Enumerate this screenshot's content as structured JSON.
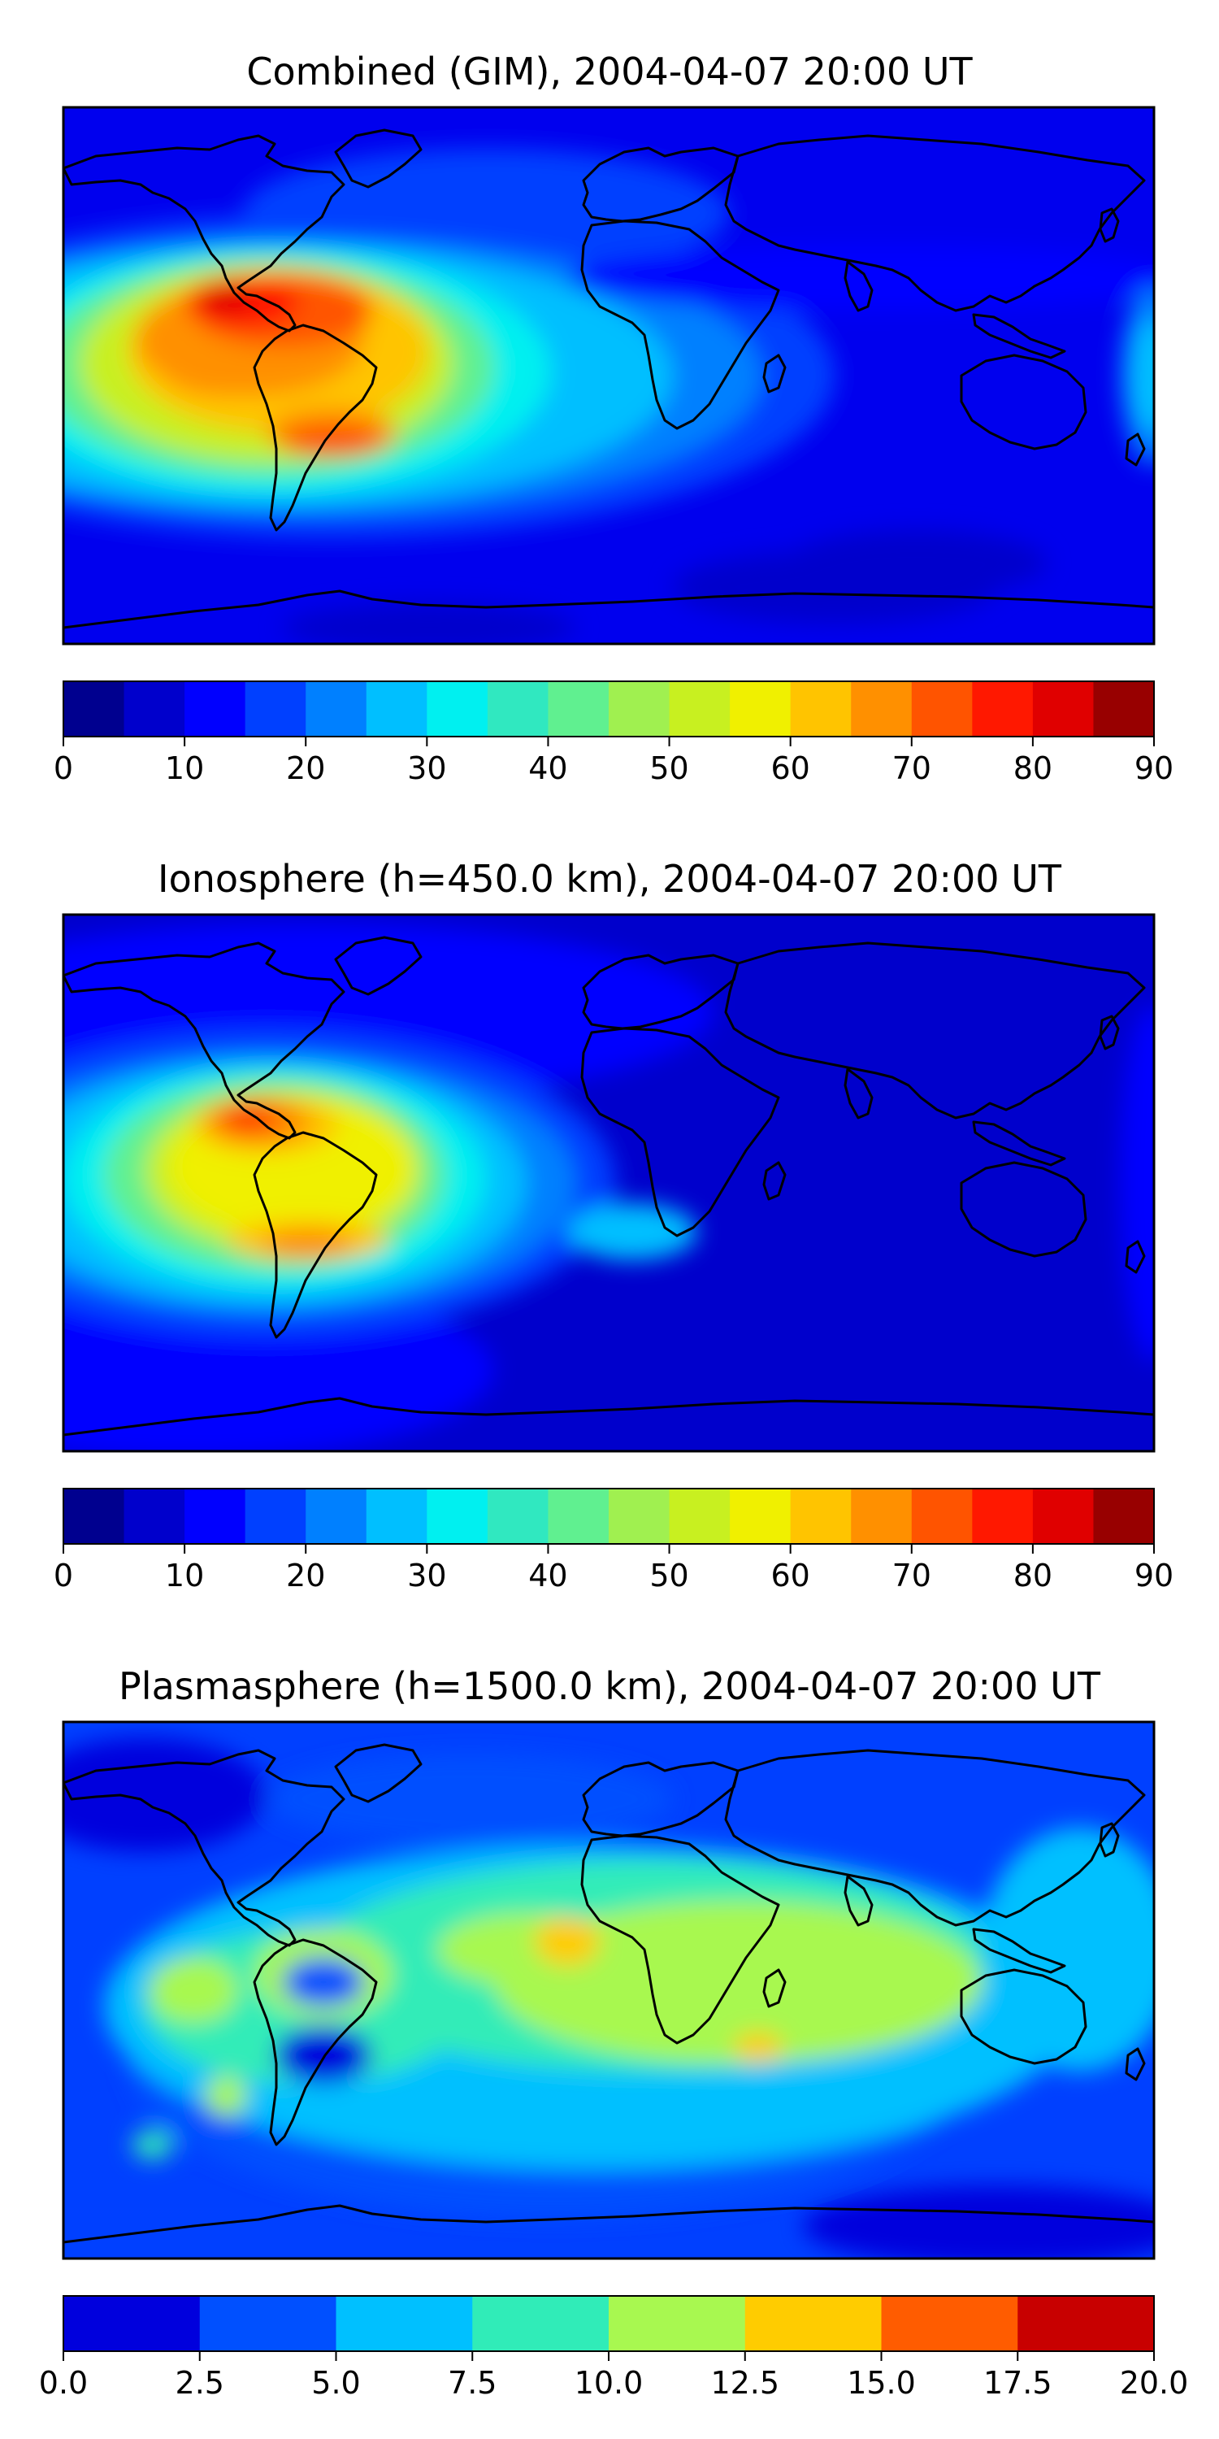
{
  "panels": [
    {
      "title": "Combined (GIM), 2004-04-07 20:00 UT",
      "background": "#0000ee",
      "colorbar": {
        "min": 0,
        "max": 90,
        "ticks": [
          "0",
          "10",
          "20",
          "30",
          "40",
          "50",
          "60",
          "70",
          "80",
          "90"
        ],
        "colors": [
          "#00008f",
          "#0000cc",
          "#0000ff",
          "#0040ff",
          "#0080ff",
          "#00bfff",
          "#00f0f0",
          "#30e8c0",
          "#60f090",
          "#a0f050",
          "#c8f020",
          "#f0f000",
          "#ffc400",
          "#ff9000",
          "#ff5400",
          "#ff1800",
          "#e00000",
          "#980000"
        ]
      }
    },
    {
      "title": "Ionosphere  (h=450.0 km), 2004-04-07 20:00 UT",
      "background": "#0000cc",
      "colorbar": {
        "min": 0,
        "max": 90,
        "ticks": [
          "0",
          "10",
          "20",
          "30",
          "40",
          "50",
          "60",
          "70",
          "80",
          "90"
        ],
        "colors": [
          "#00008f",
          "#0000cc",
          "#0000ff",
          "#0040ff",
          "#0080ff",
          "#00bfff",
          "#00f0f0",
          "#30e8c0",
          "#60f090",
          "#a0f050",
          "#c8f020",
          "#f0f000",
          "#ffc400",
          "#ff9000",
          "#ff5400",
          "#ff1800",
          "#e00000",
          "#980000"
        ]
      }
    },
    {
      "title": "Plasmasphere (h=1500.0 km), 2004-04-07 20:00 UT",
      "background": "#0040ff",
      "colorbar": {
        "min": 0,
        "max": 20,
        "ticks": [
          "0.0",
          "2.5",
          "5.0",
          "7.5",
          "10.0",
          "12.5",
          "15.0",
          "17.5",
          "20.0"
        ],
        "colors": [
          "#0000dd",
          "#0050ff",
          "#00c0ff",
          "#30ecb8",
          "#a8f850",
          "#ffcc00",
          "#ff5c00",
          "#c80000"
        ]
      }
    }
  ]
}
